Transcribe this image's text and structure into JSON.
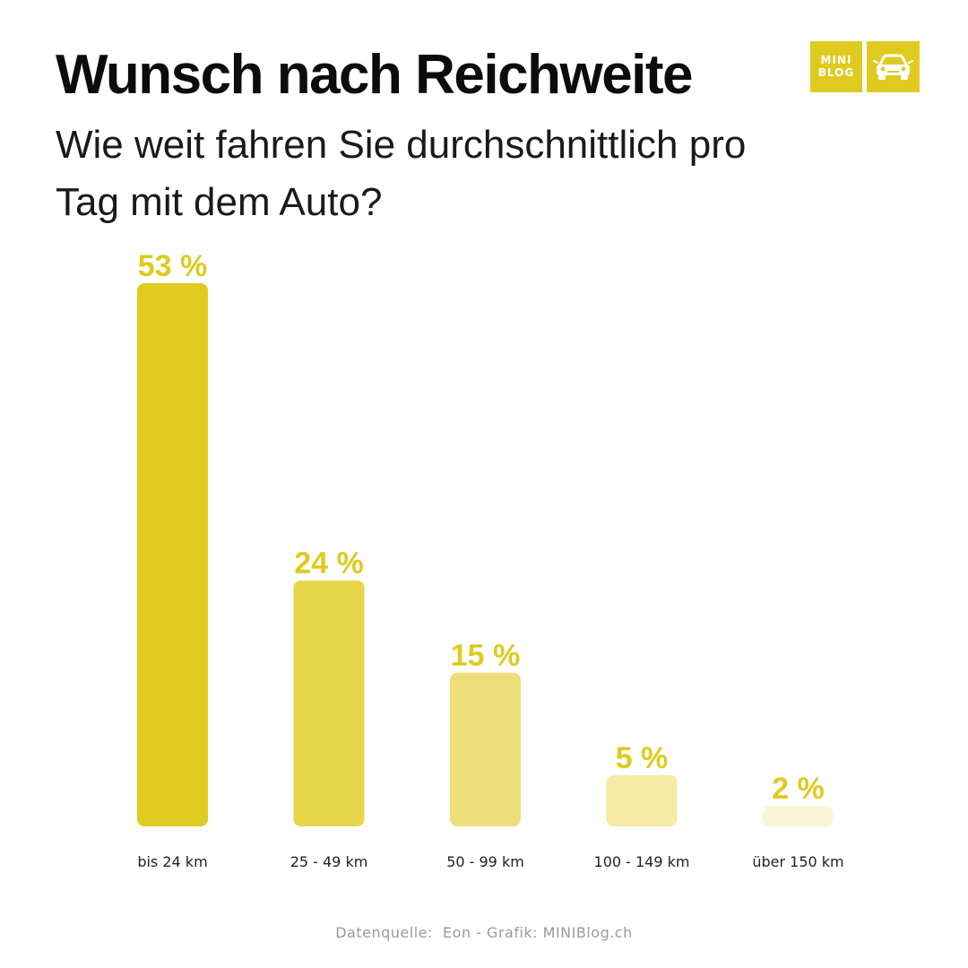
{
  "header": {
    "title": "Wunsch nach Reichweite",
    "subtitle": "Wie weit fahren Sie durchschnittlich pro Tag mit dem Auto?"
  },
  "logo": {
    "line1": "MINI",
    "line2": "BLOG",
    "icon": "car-icon",
    "color": "#dfcb20"
  },
  "chart_data": {
    "type": "bar",
    "title": "Wunsch nach Reichweite",
    "subtitle": "Wie weit fahren Sie durchschnittlich pro Tag mit dem Auto?",
    "categories": [
      "bis 24 km",
      "25 - 49 km",
      "50 - 99 km",
      "100 - 149 km",
      "über 150 km"
    ],
    "values": [
      53,
      24,
      15,
      5,
      2
    ],
    "value_labels": [
      "53 %",
      "24 %",
      "15 %",
      "5 %",
      "2 %"
    ],
    "unit": "%",
    "colors": [
      "#dfcb20",
      "#e7d64a",
      "#ede07a",
      "#f4eba6",
      "#faf5d6"
    ],
    "xlabel": "",
    "ylabel": "",
    "ylim": [
      0,
      53
    ],
    "grid": false,
    "legend": "none"
  },
  "footer": {
    "source": "Datenquelle:  Eon - Grafik: MINIBlog.ch"
  }
}
